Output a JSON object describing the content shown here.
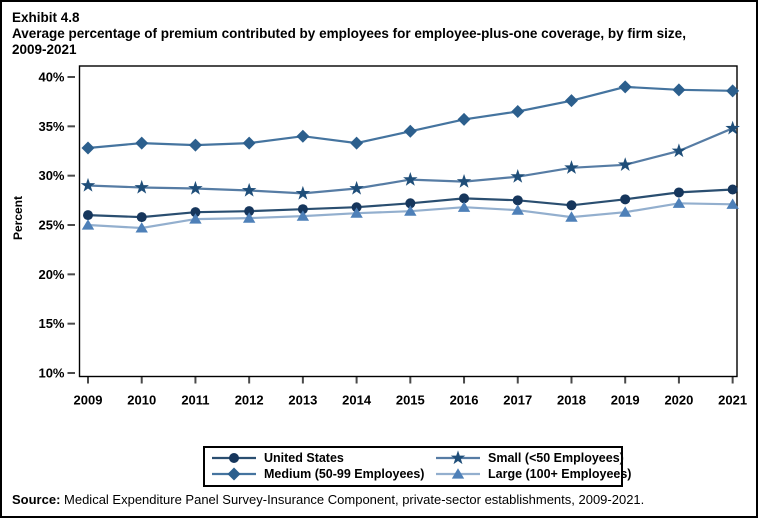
{
  "header": {
    "exhibit_label": "Exhibit 4.8",
    "title_line1": "Average percentage of premium contributed by employees for employee-plus-one coverage, by firm size,",
    "title_line2": "2009-2021"
  },
  "source": {
    "label": "Source:",
    "text": " Medical Expenditure Panel Survey-Insurance Component, private-sector establishments, 2009-2021."
  },
  "colors": {
    "frame": "#000000",
    "tick": "#4a4a4a",
    "text": "#000000",
    "background": "#ffffff"
  },
  "chart_data": {
    "type": "line",
    "title": "Average percentage of premium contributed by employees for employee-plus-one coverage, by firm size, 2009-2021",
    "xlabel": "",
    "ylabel": "Percent",
    "x": [
      2009,
      2010,
      2011,
      2012,
      2013,
      2014,
      2015,
      2016,
      2017,
      2018,
      2019,
      2020,
      2021
    ],
    "ylim": [
      10,
      40
    ],
    "ytick_step": 5,
    "ytick_suffix": "%",
    "grid": false,
    "legend_position": "bottom",
    "series": [
      {
        "name": "United States",
        "marker": "circle",
        "marker_color": "#16365c",
        "line_color": "#2a4e70",
        "values": [
          26.0,
          25.8,
          26.3,
          26.4,
          26.6,
          26.8,
          27.2,
          27.7,
          27.5,
          27.0,
          27.6,
          28.3,
          28.6
        ]
      },
      {
        "name": "Medium (50-99 Employees)",
        "marker": "diamond",
        "marker_color": "#2c5f8d",
        "line_color": "#45749f",
        "values": [
          32.8,
          33.3,
          33.1,
          33.3,
          34.0,
          33.3,
          34.5,
          35.7,
          36.5,
          37.6,
          39.0,
          38.7,
          38.6
        ]
      },
      {
        "name": "Small (<50 Employees)",
        "marker": "star",
        "marker_color": "#1f4e79",
        "line_color": "#567ca4",
        "values": [
          29.0,
          28.8,
          28.7,
          28.5,
          28.2,
          28.7,
          29.6,
          29.4,
          29.9,
          30.8,
          31.1,
          32.5,
          34.8
        ]
      },
      {
        "name": "Large (100+ Employees)",
        "marker": "triangle",
        "marker_color": "#4e80b8",
        "line_color": "#93afce",
        "values": [
          25.0,
          24.7,
          25.6,
          25.7,
          25.9,
          26.2,
          26.4,
          26.8,
          26.5,
          25.8,
          26.3,
          27.2,
          27.1
        ]
      }
    ]
  }
}
